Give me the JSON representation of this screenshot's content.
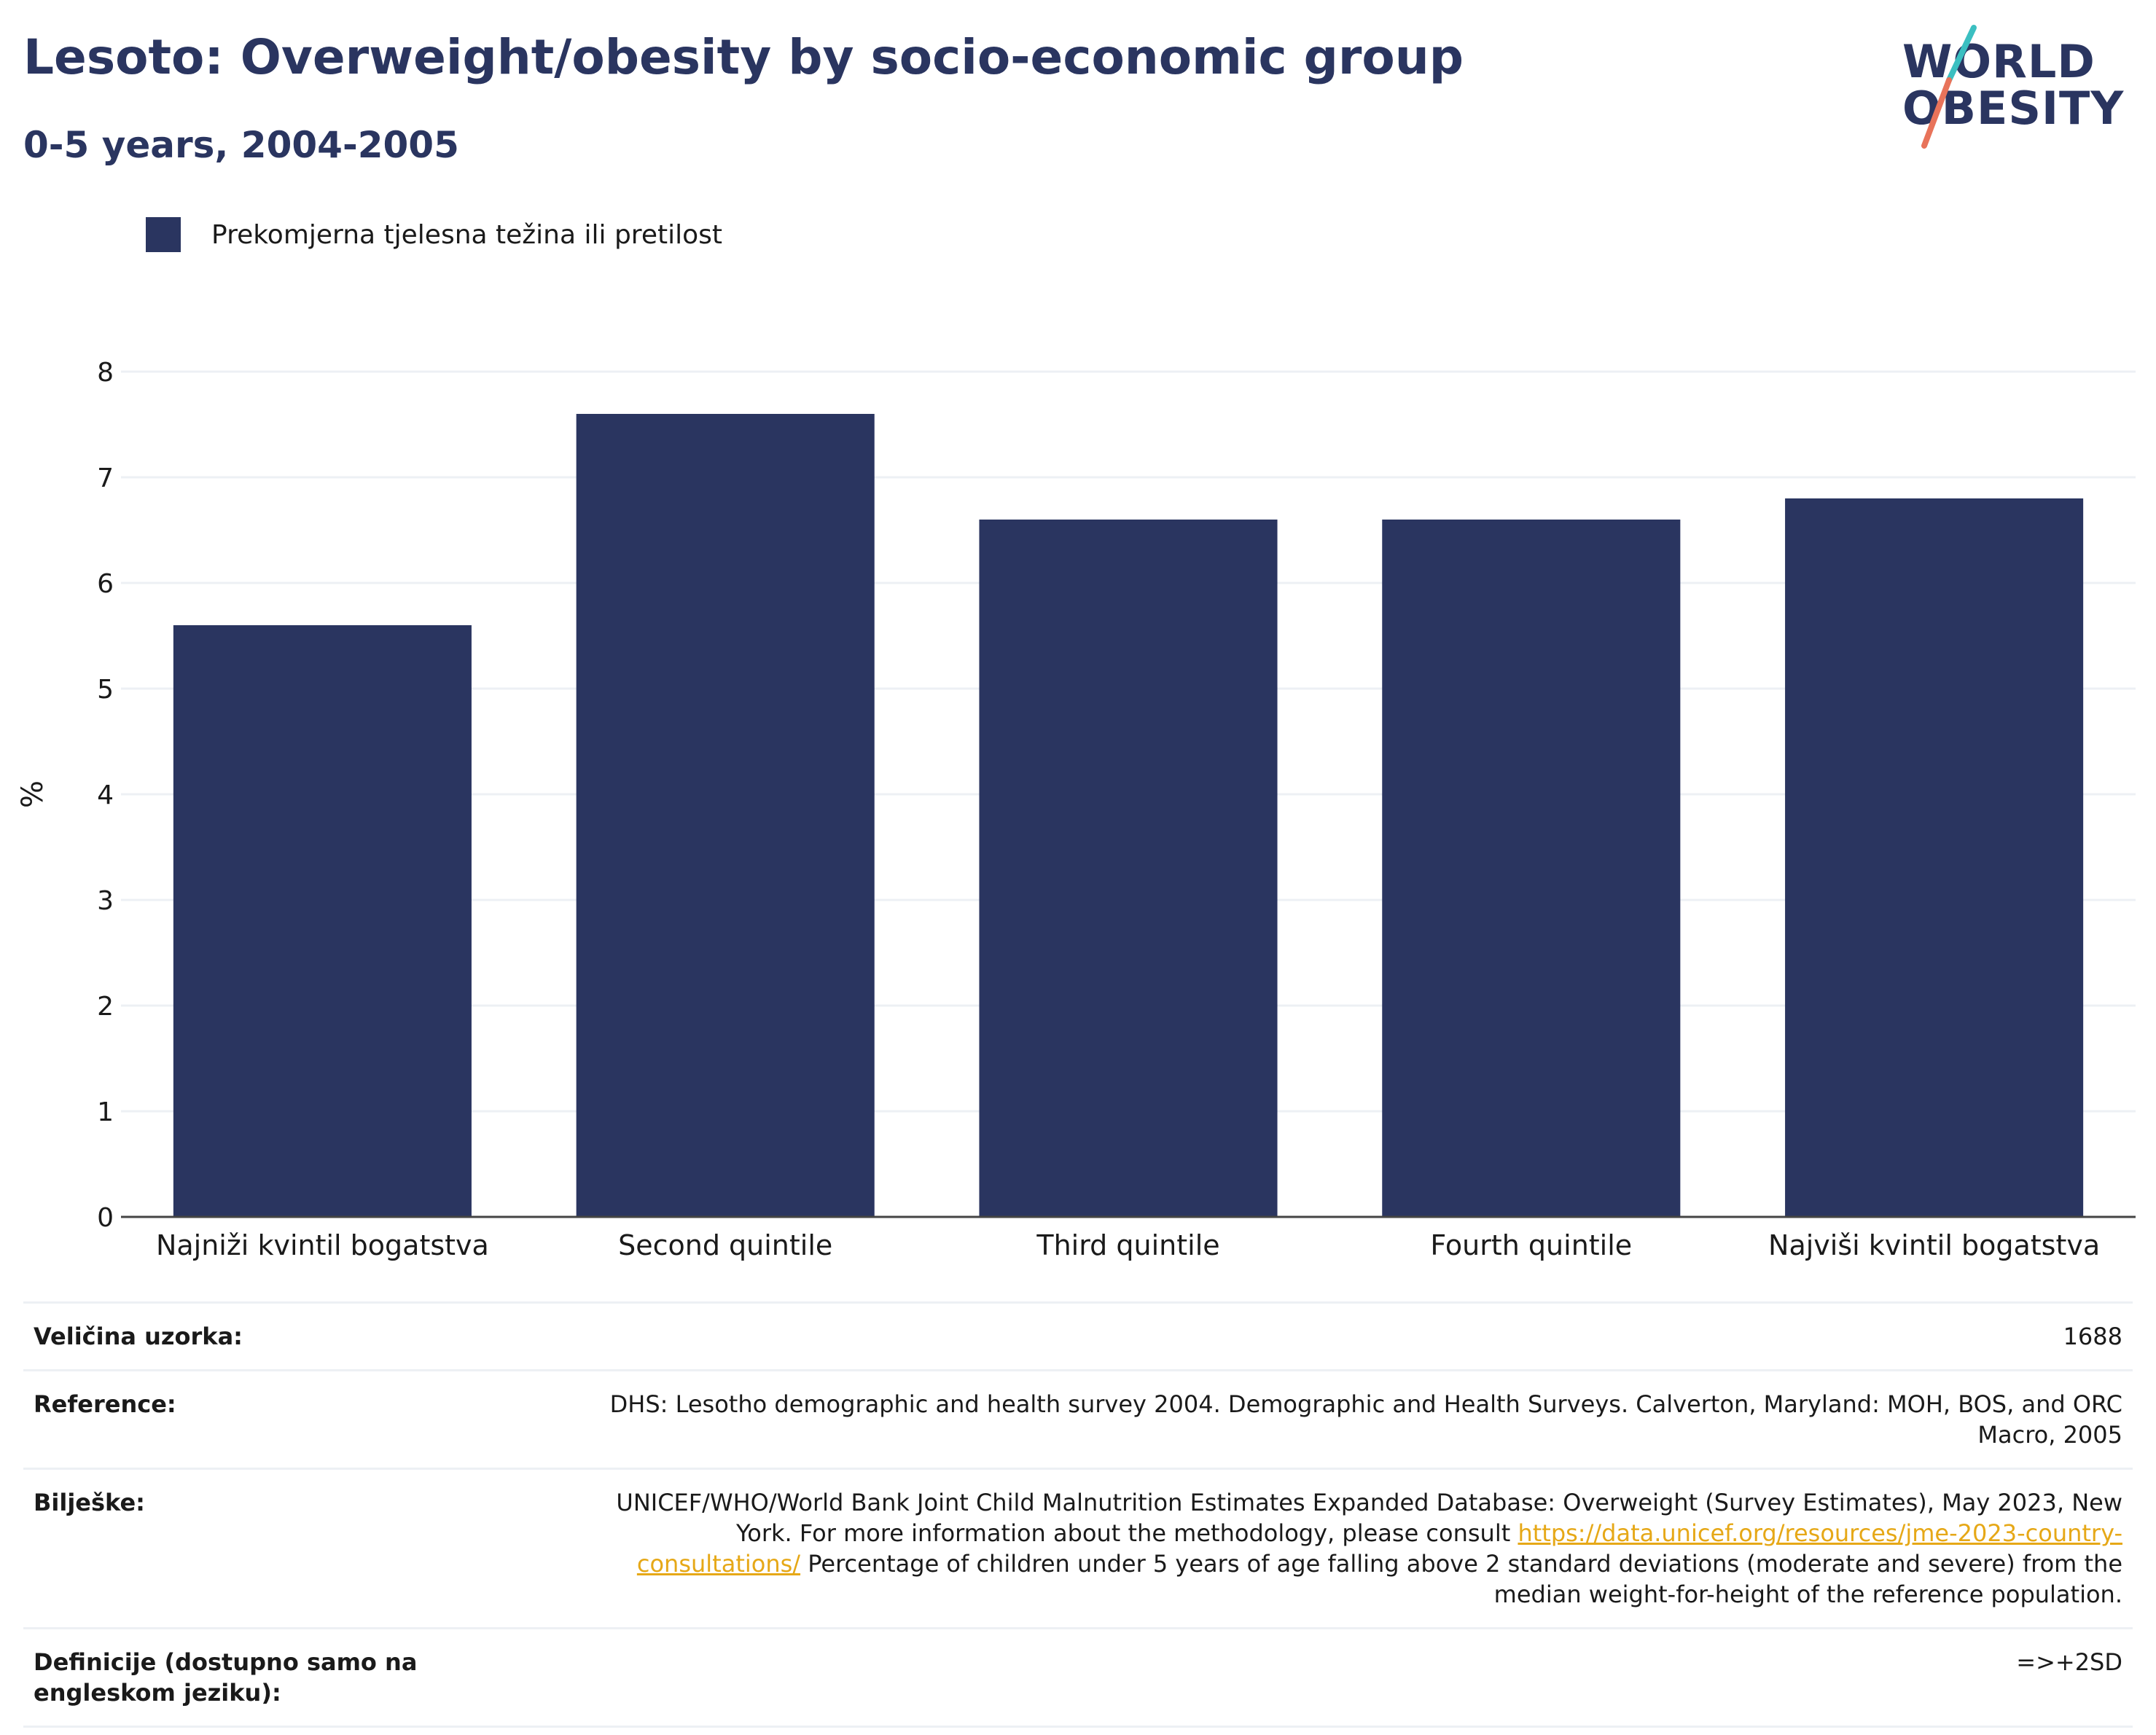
{
  "header": {
    "title": "Lesoto: Overweight/obesity by socio-economic group",
    "subtitle": "0-5 years, 2004-2005"
  },
  "logo": {
    "line1": "WORLD",
    "line2": "OBESITY",
    "accent_colors": [
      "#3bbfc1",
      "#e8735a"
    ]
  },
  "legend": {
    "label": "Prekomjerna tjelesna težina ili pretilost",
    "color": "#2a3560"
  },
  "chart_data": {
    "type": "bar",
    "categories": [
      "Najniži kvintil bogatstva",
      "Second quintile",
      "Third quintile",
      "Fourth quintile",
      "Najviši kvintil bogatstva"
    ],
    "series": [
      {
        "name": "Prekomjerna tjelesna težina ili pretilost",
        "values": [
          5.6,
          7.6,
          6.6,
          6.6,
          6.8
        ]
      }
    ],
    "ylabel": "%",
    "ylim": [
      0,
      8
    ],
    "yticks": [
      0,
      1,
      2,
      3,
      4,
      5,
      6,
      7,
      8
    ],
    "grid": true,
    "bar_color": "#2a3560",
    "grid_color": "#edf0f4"
  },
  "info": {
    "sample_size_label": "Veličina uzorka:",
    "sample_size_value": "1688",
    "reference_label": "Reference:",
    "reference_value": "DHS: Lesotho demographic and health survey 2004. Demographic and Health Surveys. Calverton, Maryland: MOH, BOS, and ORC Macro, 2005",
    "notes_label": "Bilješke:",
    "notes_text_before": "UNICEF/WHO/World Bank Joint Child Malnutrition Estimates Expanded Database: Overweight (Survey Estimates), May 2023, New York. For more information about the methodology, please consult ",
    "notes_link": "https://data.unicef.org/resources/jme-2023-country-consultations/",
    "notes_text_after": " Percentage of children under 5 years of age falling above 2 standard deviations (moderate and severe) from the median weight-for-height of the reference population.",
    "definitions_label": "Definicije (dostupno samo na engleskom jeziku):",
    "definitions_value": "=>+2SD"
  }
}
